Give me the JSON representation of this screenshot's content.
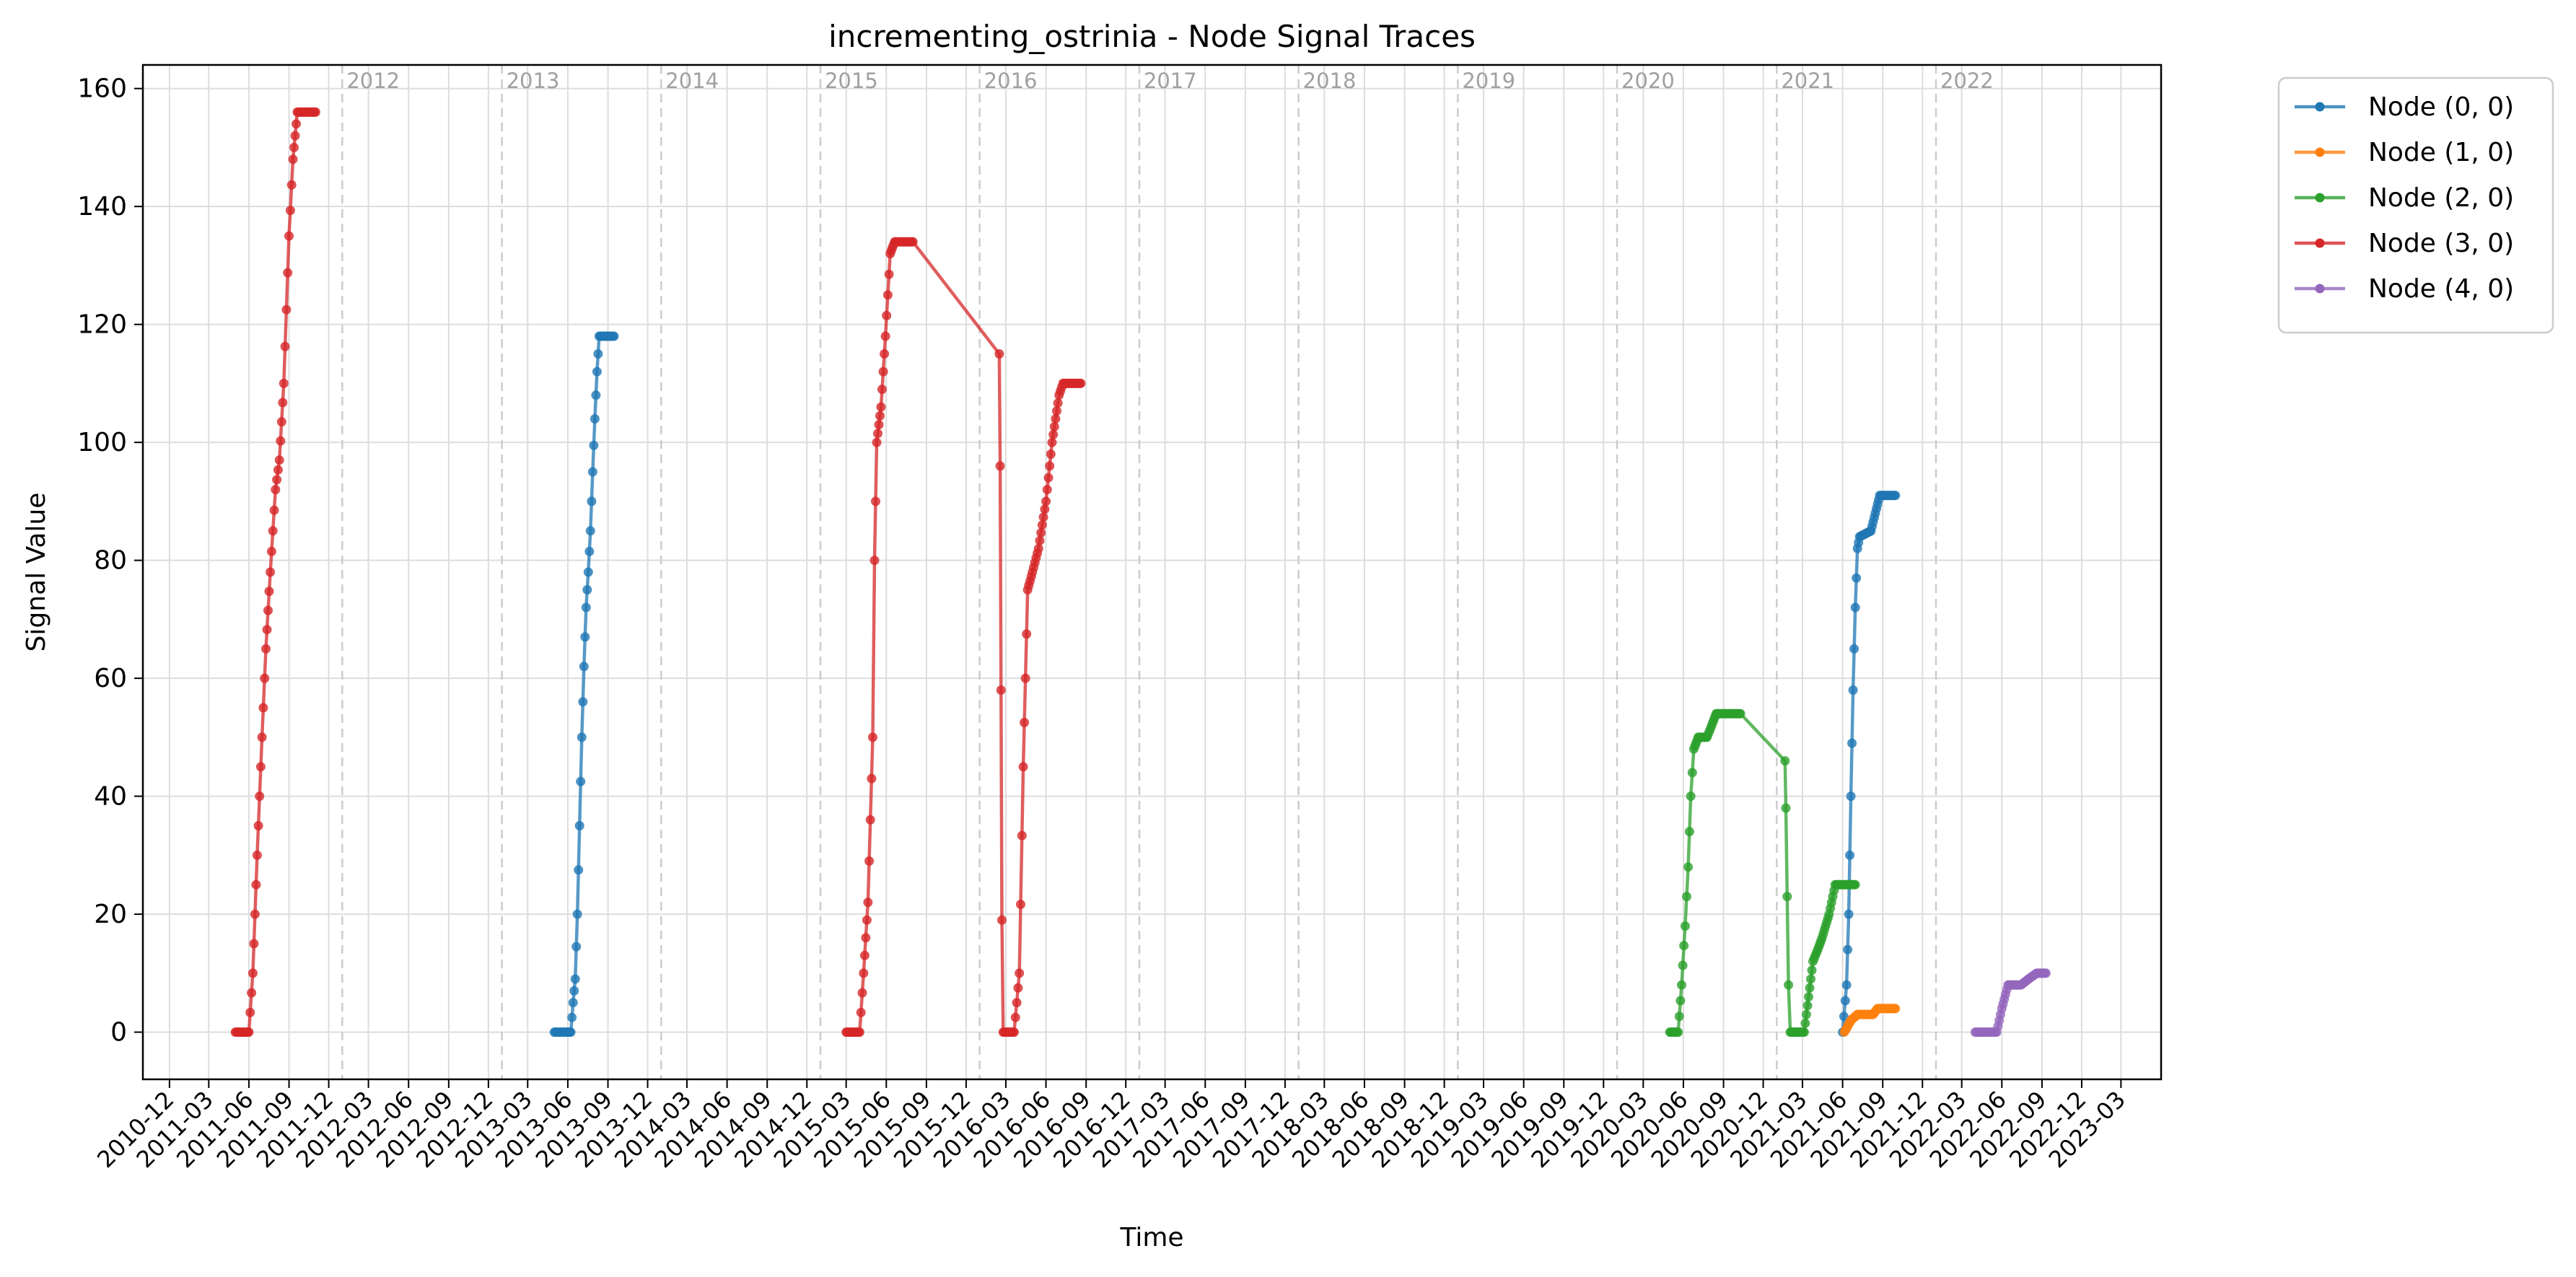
{
  "chart_data": {
    "type": "line",
    "title": "incrementing_ostrinia - Node Signal Traces",
    "xlabel": "Time",
    "ylabel": "Signal Value",
    "xlim": [
      "2010-10-01",
      "2023-06-01"
    ],
    "ylim": [
      -8,
      164
    ],
    "y_ticks": [
      0,
      20,
      40,
      60,
      80,
      100,
      120,
      140,
      160
    ],
    "x_tick_labels": [
      "2010-12",
      "2011-03",
      "2011-06",
      "2011-09",
      "2011-12",
      "2012-03",
      "2012-06",
      "2012-09",
      "2012-12",
      "2013-03",
      "2013-06",
      "2013-09",
      "2013-12",
      "2014-03",
      "2014-06",
      "2014-09",
      "2014-12",
      "2015-03",
      "2015-06",
      "2015-09",
      "2015-12",
      "2016-03",
      "2016-06",
      "2016-09",
      "2016-12",
      "2017-03",
      "2017-06",
      "2017-09",
      "2017-12",
      "2018-03",
      "2018-06",
      "2018-09",
      "2018-12",
      "2019-03",
      "2019-06",
      "2019-09",
      "2019-12",
      "2020-03",
      "2020-06",
      "2020-09",
      "2020-12",
      "2021-03",
      "2021-06",
      "2021-09",
      "2021-12",
      "2022-03",
      "2022-06",
      "2022-09",
      "2022-12",
      "2023-03"
    ],
    "year_markers": [
      {
        "label": "2012",
        "date": "2012-01-01"
      },
      {
        "label": "2013",
        "date": "2013-01-01"
      },
      {
        "label": "2014",
        "date": "2014-01-01"
      },
      {
        "label": "2015",
        "date": "2015-01-01"
      },
      {
        "label": "2016",
        "date": "2016-01-01"
      },
      {
        "label": "2017",
        "date": "2017-01-01"
      },
      {
        "label": "2018",
        "date": "2018-01-01"
      },
      {
        "label": "2019",
        "date": "2019-01-01"
      },
      {
        "label": "2020",
        "date": "2020-01-01"
      },
      {
        "label": "2021",
        "date": "2021-01-01"
      },
      {
        "label": "2022",
        "date": "2022-01-01"
      }
    ],
    "grid": true,
    "legend_position": "outside top-right",
    "series": [
      {
        "name": "Node (0, 0)",
        "color": "#1f77b4",
        "points": [
          [
            "2013-05-01",
            0
          ],
          [
            "2013-05-20",
            0
          ],
          [
            "2013-06-08",
            0
          ],
          [
            "2013-06-13",
            5
          ],
          [
            "2013-06-18",
            9
          ],
          [
            "2013-06-23",
            20
          ],
          [
            "2013-06-28",
            35
          ],
          [
            "2013-07-03",
            50
          ],
          [
            "2013-07-08",
            62
          ],
          [
            "2013-07-13",
            72
          ],
          [
            "2013-07-18",
            78
          ],
          [
            "2013-07-23",
            85
          ],
          [
            "2013-07-28",
            95
          ],
          [
            "2013-08-02",
            104
          ],
          [
            "2013-08-07",
            112
          ],
          [
            "2013-08-12",
            118
          ],
          [
            "2013-09-15",
            118
          ],
          [
            "2021-06-01",
            0
          ],
          [
            "2021-06-10",
            8
          ],
          [
            "2021-06-15",
            20
          ],
          [
            "2021-06-20",
            40
          ],
          [
            "2021-06-25",
            58
          ],
          [
            "2021-06-30",
            72
          ],
          [
            "2021-07-05",
            82
          ],
          [
            "2021-07-10",
            84
          ],
          [
            "2021-08-05",
            85
          ],
          [
            "2021-08-15",
            88
          ],
          [
            "2021-08-25",
            91
          ],
          [
            "2021-09-30",
            91
          ]
        ]
      },
      {
        "name": "Node (1, 0)",
        "color": "#ff7f0e",
        "points": [
          [
            "2021-06-05",
            0
          ],
          [
            "2021-06-20",
            2
          ],
          [
            "2021-07-05",
            3
          ],
          [
            "2021-08-10",
            3
          ],
          [
            "2021-08-20",
            4
          ],
          [
            "2021-09-30",
            4
          ]
        ]
      },
      {
        "name": "Node (2, 0)",
        "color": "#2ca02c",
        "points": [
          [
            "2020-05-01",
            0
          ],
          [
            "2020-05-20",
            0
          ],
          [
            "2020-05-28",
            8
          ],
          [
            "2020-06-05",
            18
          ],
          [
            "2020-06-12",
            28
          ],
          [
            "2020-06-18",
            40
          ],
          [
            "2020-06-25",
            48
          ],
          [
            "2020-07-05",
            50
          ],
          [
            "2020-07-25",
            50
          ],
          [
            "2020-08-05",
            52
          ],
          [
            "2020-08-15",
            54
          ],
          [
            "2020-10-10",
            54
          ],
          [
            "2021-01-20",
            46
          ],
          [
            "2021-01-22",
            38
          ],
          [
            "2021-01-25",
            23
          ],
          [
            "2021-01-28",
            8
          ],
          [
            "2021-02-01",
            0
          ],
          [
            "2021-03-05",
            0
          ],
          [
            "2021-03-15",
            6
          ],
          [
            "2021-03-25",
            12
          ],
          [
            "2021-04-05",
            14
          ],
          [
            "2021-04-15",
            16
          ],
          [
            "2021-05-01",
            20
          ],
          [
            "2021-05-15",
            25
          ],
          [
            "2021-06-30",
            25
          ]
        ]
      },
      {
        "name": "Node (3, 0)",
        "color": "#d62728",
        "points": [
          [
            "2011-05-01",
            0
          ],
          [
            "2011-06-01",
            0
          ],
          [
            "2011-06-10",
            10
          ],
          [
            "2011-06-20",
            30
          ],
          [
            "2011-07-01",
            50
          ],
          [
            "2011-07-10",
            65
          ],
          [
            "2011-07-20",
            78
          ],
          [
            "2011-08-01",
            92
          ],
          [
            "2011-08-10",
            97
          ],
          [
            "2011-08-20",
            110
          ],
          [
            "2011-09-01",
            135
          ],
          [
            "2011-09-10",
            148
          ],
          [
            "2011-09-20",
            156
          ],
          [
            "2011-11-01",
            156
          ],
          [
            "2015-03-01",
            0
          ],
          [
            "2015-04-01",
            0
          ],
          [
            "2015-04-10",
            10
          ],
          [
            "2015-04-20",
            22
          ],
          [
            "2015-05-01",
            50
          ],
          [
            "2015-05-05",
            80
          ],
          [
            "2015-05-10",
            100
          ],
          [
            "2015-05-20",
            106
          ],
          [
            "2015-05-30",
            118
          ],
          [
            "2015-06-10",
            132
          ],
          [
            "2015-06-20",
            134
          ],
          [
            "2015-08-01",
            134
          ],
          [
            "2016-02-15",
            115
          ],
          [
            "2016-02-17",
            96
          ],
          [
            "2016-02-19",
            58
          ],
          [
            "2016-02-21",
            19
          ],
          [
            "2016-02-24",
            0
          ],
          [
            "2016-03-20",
            0
          ],
          [
            "2016-04-01",
            10
          ],
          [
            "2016-04-10",
            45
          ],
          [
            "2016-04-20",
            75
          ],
          [
            "2016-05-01",
            78
          ],
          [
            "2016-05-15",
            82
          ],
          [
            "2016-06-01",
            90
          ],
          [
            "2016-06-15",
            100
          ],
          [
            "2016-07-01",
            108
          ],
          [
            "2016-07-10",
            110
          ],
          [
            "2016-08-20",
            110
          ]
        ]
      },
      {
        "name": "Node (4, 0)",
        "color": "#9467bd",
        "points": [
          [
            "2022-04-01",
            0
          ],
          [
            "2022-05-10",
            0
          ],
          [
            "2022-05-20",
            0
          ],
          [
            "2022-06-01",
            4
          ],
          [
            "2022-06-15",
            8
          ],
          [
            "2022-07-15",
            8
          ],
          [
            "2022-08-01",
            9
          ],
          [
            "2022-08-20",
            10
          ],
          [
            "2022-09-10",
            10
          ]
        ]
      }
    ]
  }
}
